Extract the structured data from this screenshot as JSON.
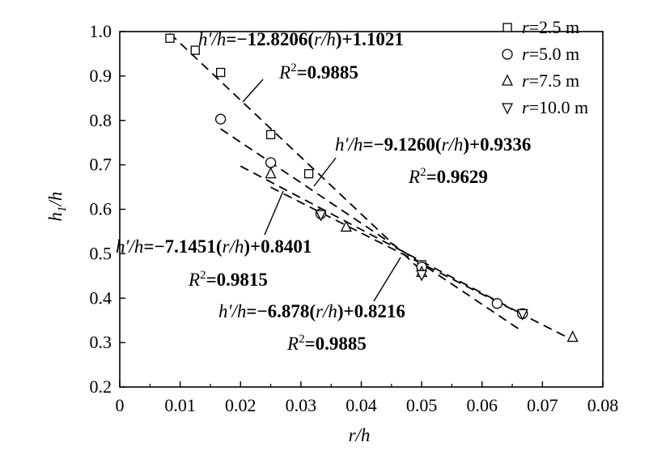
{
  "chart_data": {
    "type": "scatter",
    "xlabel": "r/h",
    "ylabel": "h1/h",
    "xlim": [
      0,
      0.08
    ],
    "ylim": [
      0.2,
      1.0
    ],
    "x_ticks": [
      "0",
      "0.01",
      "0.02",
      "0.03",
      "0.04",
      "0.05",
      "0.06",
      "0.07",
      "0.08"
    ],
    "y_ticks": [
      "0.2",
      "0.3",
      "0.4",
      "0.5",
      "0.6",
      "0.7",
      "0.8",
      "0.9",
      "1.0"
    ],
    "grid": false,
    "legend_position": "top-right",
    "series": [
      {
        "name": "r=2.5 m",
        "marker": "square",
        "points": [
          [
            0.0083,
            0.985
          ],
          [
            0.0125,
            0.958
          ],
          [
            0.0167,
            0.908
          ],
          [
            0.025,
            0.768
          ],
          [
            0.0313,
            0.68
          ],
          [
            0.05,
            0.475
          ]
        ]
      },
      {
        "name": "r=5.0 m",
        "marker": "circle",
        "points": [
          [
            0.0167,
            0.803
          ],
          [
            0.025,
            0.705
          ],
          [
            0.0333,
            0.59
          ],
          [
            0.05,
            0.47
          ],
          [
            0.0625,
            0.388
          ],
          [
            0.0667,
            0.365
          ]
        ]
      },
      {
        "name": "r=7.5 m",
        "marker": "triangle-up",
        "points": [
          [
            0.025,
            0.68
          ],
          [
            0.0375,
            0.56
          ],
          [
            0.05,
            0.458
          ],
          [
            0.075,
            0.312
          ]
        ]
      },
      {
        "name": "r=10.0 m",
        "marker": "triangle-down",
        "points": [
          [
            0.0333,
            0.588
          ],
          [
            0.05,
            0.453
          ],
          [
            0.0667,
            0.365
          ]
        ]
      }
    ],
    "fits": [
      {
        "slope": -12.8206,
        "intercept": 1.1021,
        "x_range": [
          0.0083,
          0.05
        ]
      },
      {
        "slope": -9.126,
        "intercept": 0.9336,
        "x_range": [
          0.0167,
          0.0667
        ]
      },
      {
        "slope": -7.1451,
        "intercept": 0.8401,
        "x_range": [
          0.02,
          0.0667
        ]
      },
      {
        "slope": -6.878,
        "intercept": 0.8216,
        "x_range": [
          0.025,
          0.075
        ]
      }
    ],
    "annotations": [
      {
        "equation": [
          "h′/h=−12.8206(",
          "r/h",
          ")+1.1021"
        ],
        "r2": "0.9885"
      },
      {
        "equation": [
          "h′/h=−9.1260(",
          "r/h",
          ")+0.9336"
        ],
        "r2": "0.9629"
      },
      {
        "equation": [
          "h′/h=−7.1451(",
          "r/h",
          ")+0.8401"
        ],
        "r2": "0.9815"
      },
      {
        "equation": [
          "h′/h=−6.878(",
          "r/h",
          ")+0.8216"
        ],
        "r2": "0.9885"
      }
    ]
  }
}
